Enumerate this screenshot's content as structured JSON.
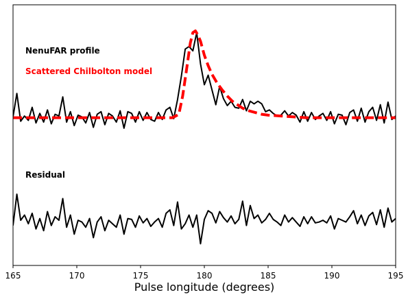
{
  "chart_data": {
    "type": "line",
    "title": "",
    "xlabel": "Pulse longitude (degrees)",
    "ylabel": "",
    "xlim": [
      165,
      195
    ],
    "ylim": [
      -1.7,
      1.3
    ],
    "xticks": [
      165,
      170,
      175,
      180,
      185,
      190,
      195
    ],
    "grid": false,
    "annotations": [
      {
        "text": "NenuFAR profile",
        "color": "#000000"
      },
      {
        "text": "Scattered Chilbolton model",
        "color": "#ff0000"
      },
      {
        "text": "Residual",
        "color": "#000000"
      }
    ],
    "series": [
      {
        "name": "NenuFAR profile",
        "style": "solid",
        "color": "#000000",
        "x": [
          165.0,
          165.3,
          165.6,
          165.9,
          166.2,
          166.5,
          166.8,
          167.1,
          167.4,
          167.7,
          168.0,
          168.3,
          168.6,
          168.9,
          169.2,
          169.5,
          169.8,
          170.1,
          170.4,
          170.7,
          171.0,
          171.3,
          171.6,
          171.9,
          172.2,
          172.5,
          172.8,
          173.1,
          173.4,
          173.7,
          174.0,
          174.3,
          174.6,
          174.9,
          175.2,
          175.5,
          175.8,
          176.1,
          176.4,
          176.7,
          177.0,
          177.3,
          177.6,
          177.9,
          178.2,
          178.5,
          178.8,
          179.1,
          179.4,
          179.7,
          180.0,
          180.3,
          180.6,
          180.9,
          181.2,
          181.5,
          181.8,
          182.1,
          182.4,
          182.7,
          183.0,
          183.3,
          183.6,
          183.9,
          184.2,
          184.5,
          184.8,
          185.1,
          185.4,
          185.7,
          186.0,
          186.3,
          186.6,
          186.9,
          187.2,
          187.5,
          187.8,
          188.1,
          188.4,
          188.7,
          189.0,
          189.3,
          189.6,
          189.9,
          190.2,
          190.5,
          190.8,
          191.1,
          191.4,
          191.7,
          192.0,
          192.3,
          192.6,
          192.9,
          193.2,
          193.5,
          193.8,
          194.1,
          194.4,
          194.7,
          195.0
        ],
        "y": [
          0.01,
          0.28,
          -0.04,
          0.02,
          -0.03,
          0.12,
          -0.06,
          0.05,
          -0.05,
          0.09,
          -0.07,
          0.04,
          0.02,
          0.24,
          -0.05,
          0.07,
          -0.09,
          0.03,
          0.01,
          -0.06,
          0.06,
          -0.11,
          0.04,
          0.07,
          -0.08,
          0.05,
          0.02,
          -0.05,
          0.08,
          -0.12,
          0.07,
          0.05,
          -0.05,
          0.07,
          -0.03,
          0.06,
          -0.02,
          -0.04,
          0.06,
          -0.02,
          0.09,
          0.12,
          -0.01,
          0.21,
          0.48,
          0.79,
          0.82,
          0.77,
          0.98,
          0.62,
          0.38,
          0.49,
          0.32,
          0.15,
          0.36,
          0.22,
          0.14,
          0.19,
          0.12,
          0.11,
          0.21,
          0.08,
          0.19,
          0.16,
          0.19,
          0.16,
          0.07,
          0.09,
          0.05,
          0.02,
          0.03,
          0.08,
          0.02,
          0.06,
          0.03,
          -0.05,
          0.07,
          -0.04,
          0.06,
          -0.02,
          0.02,
          0.05,
          -0.03,
          0.07,
          -0.07,
          0.04,
          0.03,
          -0.08,
          0.06,
          0.09,
          -0.04,
          0.11,
          -0.05,
          0.07,
          0.12,
          -0.03,
          0.15,
          -0.06,
          0.18,
          -0.02,
          0.02
        ]
      },
      {
        "name": "Scattered Chilbolton model",
        "style": "dashed",
        "color": "#ff0000",
        "x": [
          165.0,
          166.0,
          167.0,
          168.0,
          169.0,
          170.0,
          171.0,
          172.0,
          173.0,
          174.0,
          175.0,
          176.0,
          177.0,
          177.5,
          178.0,
          178.3,
          178.6,
          178.9,
          179.1,
          179.3,
          179.5,
          179.7,
          180.0,
          180.3,
          180.6,
          181.0,
          181.4,
          181.8,
          182.2,
          182.6,
          183.0,
          183.5,
          184.0,
          184.5,
          185.0,
          186.0,
          187.0,
          188.0,
          189.0,
          190.0,
          191.0,
          192.0,
          193.0,
          194.0,
          195.0
        ],
        "y": [
          0.0,
          0.0,
          0.0,
          0.0,
          0.0,
          0.0,
          0.0,
          0.0,
          0.0,
          0.0,
          0.0,
          0.0,
          0.0,
          0.0,
          0.04,
          0.25,
          0.55,
          0.86,
          0.98,
          1.0,
          0.95,
          0.88,
          0.72,
          0.6,
          0.5,
          0.4,
          0.32,
          0.25,
          0.19,
          0.15,
          0.11,
          0.08,
          0.06,
          0.04,
          0.03,
          0.02,
          0.01,
          0.0,
          0.0,
          0.0,
          0.0,
          0.0,
          0.0,
          0.0,
          0.0
        ]
      },
      {
        "name": "Residual",
        "style": "solid",
        "color": "#000000",
        "x": [
          165.0,
          165.3,
          165.6,
          165.9,
          166.2,
          166.5,
          166.8,
          167.1,
          167.4,
          167.7,
          168.0,
          168.3,
          168.6,
          168.9,
          169.2,
          169.5,
          169.8,
          170.1,
          170.4,
          170.7,
          171.0,
          171.3,
          171.6,
          171.9,
          172.2,
          172.5,
          172.8,
          173.1,
          173.4,
          173.7,
          174.0,
          174.3,
          174.6,
          174.9,
          175.2,
          175.5,
          175.8,
          176.1,
          176.4,
          176.7,
          177.0,
          177.3,
          177.6,
          177.9,
          178.2,
          178.5,
          178.8,
          179.1,
          179.4,
          179.7,
          180.0,
          180.3,
          180.6,
          180.9,
          181.2,
          181.5,
          181.8,
          182.1,
          182.4,
          182.7,
          183.0,
          183.3,
          183.6,
          183.9,
          184.2,
          184.5,
          184.8,
          185.1,
          185.4,
          185.7,
          186.0,
          186.3,
          186.6,
          186.9,
          187.2,
          187.5,
          187.8,
          188.1,
          188.4,
          188.7,
          189.0,
          189.3,
          189.6,
          189.9,
          190.2,
          190.5,
          190.8,
          191.1,
          191.4,
          191.7,
          192.0,
          192.3,
          192.6,
          192.9,
          193.2,
          193.5,
          193.8,
          194.1,
          194.4,
          194.7,
          195.0
        ],
        "y": [
          -1.24,
          -0.88,
          -1.18,
          -1.12,
          -1.22,
          -1.1,
          -1.28,
          -1.16,
          -1.3,
          -1.08,
          -1.24,
          -1.14,
          -1.18,
          -0.93,
          -1.26,
          -1.12,
          -1.34,
          -1.18,
          -1.2,
          -1.26,
          -1.16,
          -1.38,
          -1.2,
          -1.14,
          -1.3,
          -1.18,
          -1.22,
          -1.26,
          -1.12,
          -1.34,
          -1.16,
          -1.17,
          -1.26,
          -1.13,
          -1.21,
          -1.16,
          -1.25,
          -1.2,
          -1.16,
          -1.26,
          -1.1,
          -1.06,
          -1.24,
          -0.97,
          -1.28,
          -1.22,
          -1.12,
          -1.26,
          -1.12,
          -1.45,
          -1.17,
          -1.07,
          -1.1,
          -1.21,
          -1.08,
          -1.15,
          -1.2,
          -1.13,
          -1.22,
          -1.17,
          -0.96,
          -1.24,
          -1.01,
          -1.16,
          -1.12,
          -1.21,
          -1.17,
          -1.1,
          -1.17,
          -1.2,
          -1.24,
          -1.12,
          -1.2,
          -1.15,
          -1.2,
          -1.25,
          -1.14,
          -1.22,
          -1.14,
          -1.21,
          -1.2,
          -1.18,
          -1.21,
          -1.13,
          -1.28,
          -1.16,
          -1.18,
          -1.2,
          -1.14,
          -1.07,
          -1.22,
          -1.12,
          -1.24,
          -1.13,
          -1.09,
          -1.23,
          -1.06,
          -1.26,
          -1.04,
          -1.2,
          -1.16
        ]
      }
    ]
  }
}
